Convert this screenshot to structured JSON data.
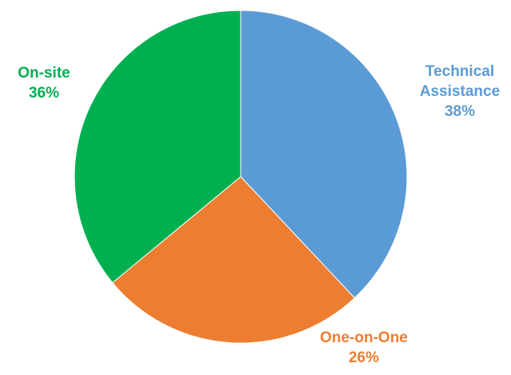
{
  "chart_data": {
    "type": "pie",
    "slices": [
      {
        "label": "Technical Assistance",
        "label_lines": [
          "Technical",
          "Assistance"
        ],
        "value": 38,
        "value_label": "38%",
        "color": "#5B9BD5"
      },
      {
        "label": "One-on-One",
        "label_lines": [
          "One-on-One"
        ],
        "value": 26,
        "value_label": "26%",
        "color": "#ED7D31"
      },
      {
        "label": "On-site",
        "label_lines": [
          "On-site"
        ],
        "value": 36,
        "value_label": "36%",
        "color": "#00B050"
      }
    ],
    "start_angle_deg": 0,
    "direction": "clockwise",
    "legend": "none"
  }
}
